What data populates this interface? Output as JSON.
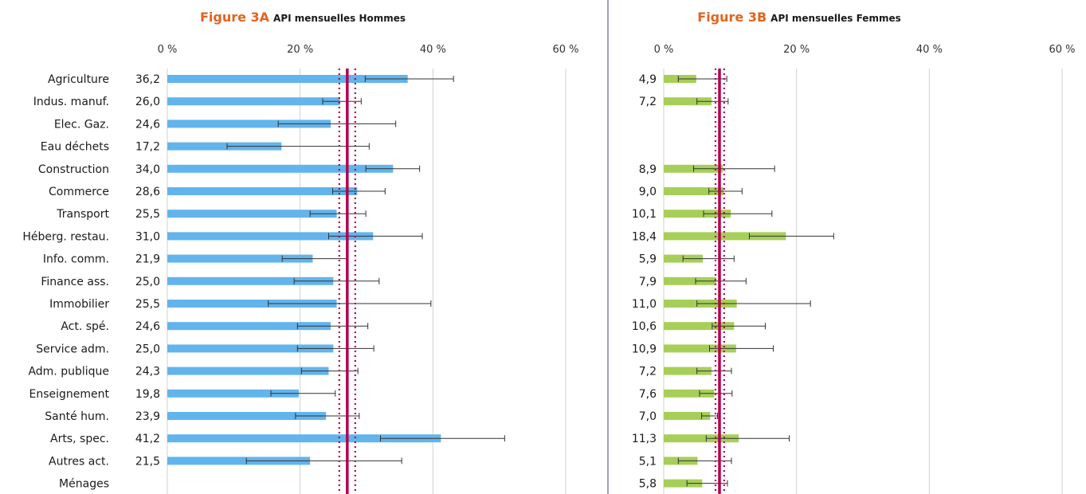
{
  "colors": {
    "figure_label": "#e2641f",
    "men_bar": "#62b4ec",
    "women_bar": "#a6cf58",
    "mean_line": "#b3004f",
    "gridline": "#d0d0d0",
    "divider": "#3b3f8f",
    "error_bar": "#333333"
  },
  "chart_data": [
    {
      "type": "bar",
      "orientation": "horizontal",
      "figure_label": "Figure 3A",
      "title": "API mensuelles Hommes",
      "xlim": [
        0,
        60
      ],
      "xticks": [
        "0 %",
        "20 %",
        "40 %",
        "60 %"
      ],
      "categories": [
        "Agriculture",
        "Indus. manuf.",
        "Elec. Gaz.",
        "Eau déchets",
        "Construction",
        "Commerce",
        "Transport",
        "Héberg. restau.",
        "Info. comm.",
        "Finance ass.",
        "Immobilier",
        "Act. spé.",
        "Service adm.",
        "Adm. publique",
        "Enseignement",
        "Santé hum.",
        "Arts, spec.",
        "Autres act.",
        "Ménages"
      ],
      "value_labels": [
        "36,2",
        "26,0",
        "24,6",
        "17,2",
        "34,0",
        "28,6",
        "25,5",
        "31,0",
        "21,9",
        "25,0",
        "25,5",
        "24,6",
        "25,0",
        "24,3",
        "19,8",
        "23,9",
        "41,2",
        "21,5",
        ""
      ],
      "values": [
        36.2,
        26.0,
        24.6,
        17.2,
        34.0,
        28.6,
        25.5,
        31.0,
        21.9,
        25.0,
        25.5,
        24.6,
        25.0,
        24.3,
        19.8,
        23.9,
        41.2,
        21.5,
        null
      ],
      "error_low": [
        29.8,
        23.4,
        16.7,
        9.0,
        29.9,
        24.9,
        21.5,
        24.3,
        17.3,
        19.1,
        15.2,
        19.6,
        19.6,
        20.2,
        15.6,
        19.3,
        32.1,
        11.9,
        null
      ],
      "error_high": [
        43.1,
        29.2,
        34.4,
        30.4,
        38.0,
        32.8,
        29.9,
        38.4,
        27.1,
        31.9,
        39.7,
        30.2,
        31.1,
        28.7,
        25.3,
        28.9,
        50.8,
        35.3,
        null
      ],
      "mean_line": 27.1,
      "mean_interval": [
        25.9,
        28.3
      ]
    },
    {
      "type": "bar",
      "orientation": "horizontal",
      "figure_label": "Figure 3B",
      "title": "API mensuelles Femmes",
      "xlim": [
        0,
        60
      ],
      "xticks": [
        "0 %",
        "20 %",
        "40 %",
        "60 %"
      ],
      "categories": [
        "Agriculture",
        "Indus. manuf.",
        "Elec. Gaz.",
        "Eau déchets",
        "Construction",
        "Commerce",
        "Transport",
        "Héberg. restau.",
        "Info. comm.",
        "Finance ass.",
        "Immobilier",
        "Act. spé.",
        "Service adm.",
        "Adm. publique",
        "Enseignement",
        "Santé hum.",
        "Arts, spec.",
        "Autres act.",
        "Ménages"
      ],
      "value_labels": [
        "4,9",
        "7,2",
        "",
        "",
        "8,9",
        "9,0",
        "10,1",
        "18,4",
        "5,9",
        "7,9",
        "11,0",
        "10,6",
        "10,9",
        "7,2",
        "7,6",
        "7,0",
        "11,3",
        "5,1",
        "5,8"
      ],
      "values": [
        4.9,
        7.2,
        null,
        null,
        8.9,
        9.0,
        10.1,
        18.4,
        5.9,
        7.9,
        11.0,
        10.6,
        10.9,
        7.2,
        7.6,
        7.0,
        11.3,
        5.1,
        5.8
      ],
      "error_low": [
        2.2,
        5.0,
        null,
        null,
        4.5,
        6.8,
        6.0,
        12.9,
        2.9,
        4.8,
        5.0,
        7.3,
        6.9,
        5.0,
        5.4,
        5.7,
        6.4,
        2.2,
        3.5
      ],
      "error_high": [
        9.5,
        9.7,
        null,
        null,
        16.7,
        11.8,
        16.3,
        25.6,
        10.6,
        12.4,
        22.1,
        15.3,
        16.5,
        10.2,
        10.3,
        8.1,
        18.9,
        10.2,
        9.6
      ],
      "mean_line": 8.4,
      "mean_interval": [
        7.8,
        9.1
      ]
    }
  ]
}
